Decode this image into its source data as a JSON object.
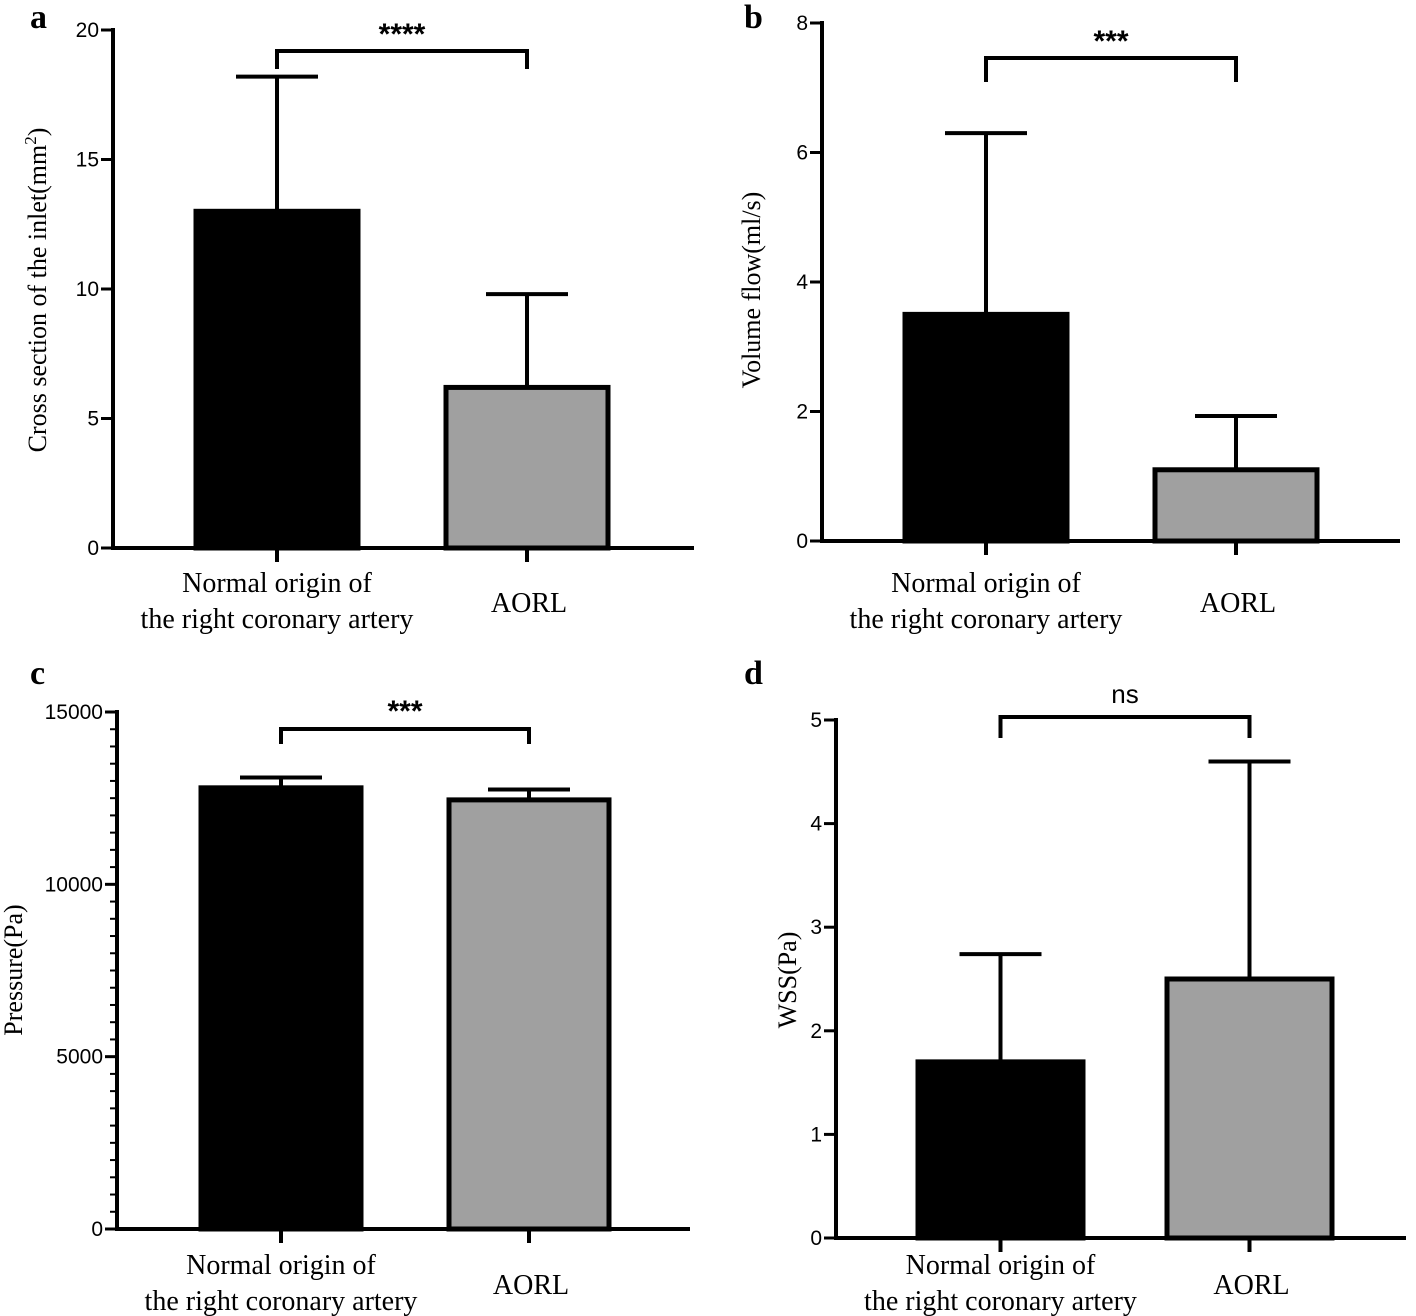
{
  "chart_data": [
    {
      "type": "bar",
      "panel_label": "a",
      "title": "",
      "xlabel": "",
      "ylabel": "Cross section of the inlet(mm",
      "ylabel_sup": "2",
      "ylabel_close": ")",
      "ylim": [
        0,
        20
      ],
      "yticks": [
        "0",
        "5",
        "10",
        "15",
        "20"
      ],
      "categories": [
        {
          "line1": "Normal origin of",
          "line2": "the right coronary artery"
        },
        {
          "line1": "AORL",
          "line2": ""
        }
      ],
      "values": [
        13.0,
        6.2
      ],
      "errors": [
        5.2,
        3.6
      ],
      "bar_colors": [
        "#000000",
        "#a0a0a0"
      ],
      "significance": "****",
      "grid": false
    },
    {
      "type": "bar",
      "panel_label": "b",
      "title": "",
      "xlabel": "",
      "ylabel": "Volume flow(ml/s)",
      "ylim": [
        0,
        8
      ],
      "yticks": [
        "0",
        "2",
        "4",
        "6",
        "8"
      ],
      "categories": [
        {
          "line1": "Normal origin of",
          "line2": "the right coronary artery"
        },
        {
          "line1": "AORL",
          "line2": ""
        }
      ],
      "values": [
        3.5,
        1.1
      ],
      "errors": [
        2.8,
        0.83
      ],
      "bar_colors": [
        "#000000",
        "#a0a0a0"
      ],
      "significance": "***",
      "grid": false
    },
    {
      "type": "bar",
      "panel_label": "c",
      "title": "",
      "xlabel": "",
      "ylabel": "Pressure(Pa)",
      "ylim": [
        0,
        15000
      ],
      "yticks": [
        "0",
        "5000",
        "10000",
        "15000"
      ],
      "categories": [
        {
          "line1": "Normal origin of",
          "line2": "the right coronary artery"
        },
        {
          "line1": "AORL",
          "line2": ""
        }
      ],
      "values": [
        12800,
        12450
      ],
      "errors": [
        300,
        300
      ],
      "bar_colors": [
        "#000000",
        "#a0a0a0"
      ],
      "significance": "***",
      "grid": false
    },
    {
      "type": "bar",
      "panel_label": "d",
      "title": "",
      "xlabel": "",
      "ylabel": "WSS(Pa)",
      "ylim": [
        0,
        5
      ],
      "yticks": [
        "0",
        "1",
        "2",
        "3",
        "4",
        "5"
      ],
      "categories": [
        {
          "line1": "Normal origin of",
          "line2": "the right coronary artery"
        },
        {
          "line1": "AORL",
          "line2": ""
        }
      ],
      "values": [
        1.7,
        2.5
      ],
      "errors": [
        1.04,
        2.1
      ],
      "bar_colors": [
        "#000000",
        "#a0a0a0"
      ],
      "significance": "ns",
      "grid": false
    }
  ]
}
